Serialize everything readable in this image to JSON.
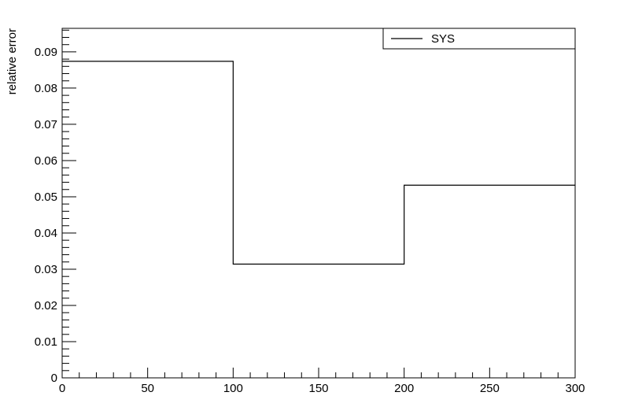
{
  "chart_data": {
    "type": "line",
    "style": "step-histogram",
    "title": "",
    "xlabel": "",
    "ylabel": "relative error",
    "xlim": [
      0,
      300
    ],
    "ylim": [
      0,
      0.0965
    ],
    "x_ticks": [
      0,
      50,
      100,
      150,
      200,
      250,
      300
    ],
    "x_tick_labels": [
      "0",
      "50",
      "100",
      "150",
      "200",
      "250",
      "300"
    ],
    "y_ticks": [
      0,
      0.01,
      0.02,
      0.03,
      0.04,
      0.05,
      0.06,
      0.07,
      0.08,
      0.09
    ],
    "y_tick_labels": [
      "0",
      "0.01",
      "0.02",
      "0.03",
      "0.04",
      "0.05",
      "0.06",
      "0.07",
      "0.08",
      "0.09"
    ],
    "grid": false,
    "legend_position": "top-right",
    "series": [
      {
        "name": "SYS",
        "color": "#000000",
        "bin_edges": [
          0,
          100,
          200,
          300
        ],
        "values": [
          0.0874,
          0.0314,
          0.0532
        ]
      }
    ]
  }
}
